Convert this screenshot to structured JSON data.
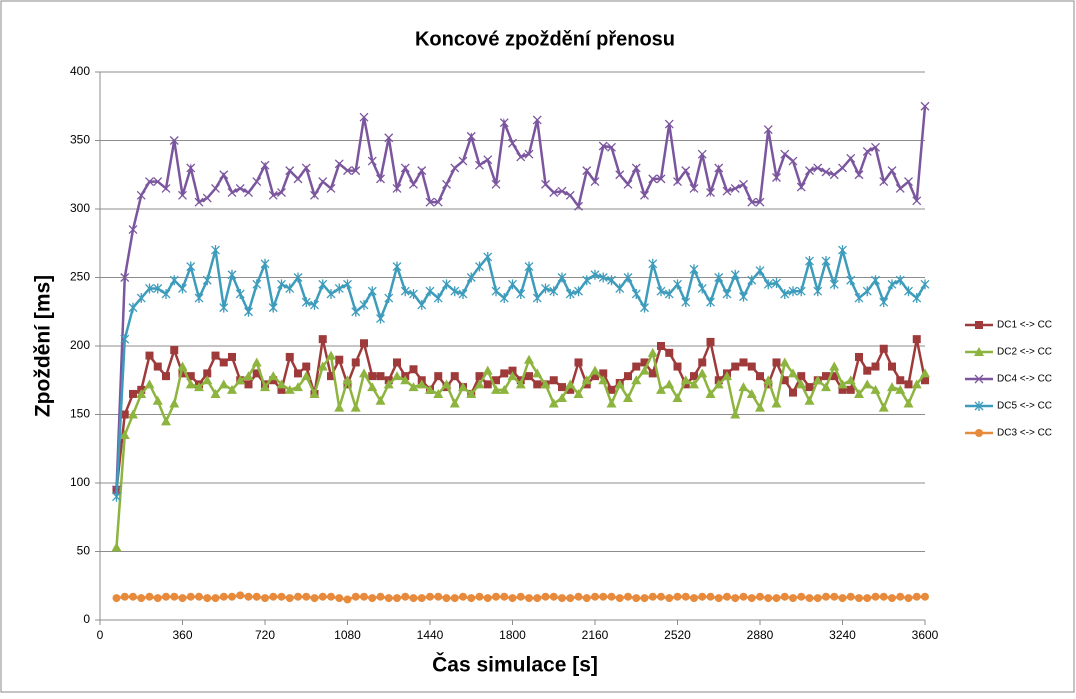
{
  "chart_data": {
    "type": "line",
    "title": "Koncové zpoždění přenosu",
    "x_label": "Čas simulace [s]",
    "y_label": "Zpoždění [ms]",
    "x": [
      72,
      108,
      144,
      180,
      216,
      252,
      288,
      324,
      360,
      396,
      432,
      468,
      504,
      540,
      576,
      612,
      648,
      684,
      720,
      756,
      792,
      828,
      864,
      900,
      936,
      972,
      1008,
      1044,
      1080,
      1116,
      1152,
      1188,
      1224,
      1260,
      1296,
      1332,
      1368,
      1404,
      1440,
      1476,
      1512,
      1548,
      1584,
      1620,
      1656,
      1692,
      1728,
      1764,
      1800,
      1836,
      1872,
      1908,
      1944,
      1980,
      2016,
      2052,
      2088,
      2124,
      2160,
      2196,
      2232,
      2268,
      2304,
      2340,
      2376,
      2412,
      2448,
      2484,
      2520,
      2556,
      2592,
      2628,
      2664,
      2700,
      2736,
      2772,
      2808,
      2844,
      2880,
      2916,
      2952,
      2988,
      3024,
      3060,
      3096,
      3132,
      3168,
      3204,
      3240,
      3276,
      3312,
      3348,
      3384,
      3420,
      3456,
      3492,
      3528,
      3564,
      3600
    ],
    "series": [
      {
        "name": "DC1 <-> CC",
        "color": "#9e3a3a",
        "marker": "square",
        "values": [
          95,
          150,
          165,
          168,
          193,
          185,
          178,
          197,
          180,
          178,
          172,
          180,
          193,
          188,
          192,
          175,
          172,
          180,
          172,
          175,
          168,
          192,
          180,
          185,
          165,
          205,
          178,
          190,
          172,
          188,
          202,
          178,
          178,
          175,
          188,
          178,
          183,
          175,
          168,
          178,
          170,
          178,
          170,
          165,
          178,
          172,
          175,
          180,
          182,
          175,
          178,
          172,
          172,
          175,
          170,
          168,
          188,
          172,
          178,
          180,
          168,
          173,
          178,
          185,
          188,
          180,
          200,
          195,
          185,
          172,
          178,
          188,
          203,
          175,
          180,
          185,
          188,
          185,
          178,
          172,
          188,
          175,
          166,
          178,
          170,
          175,
          178,
          178,
          168,
          168,
          192,
          182,
          185,
          198,
          185,
          175,
          172,
          205,
          175
        ]
      },
      {
        "name": "DC2 <-> CC",
        "color": "#8db43e",
        "marker": "triangle",
        "values": [
          53,
          135,
          150,
          165,
          172,
          160,
          145,
          158,
          185,
          172,
          170,
          175,
          165,
          172,
          168,
          175,
          178,
          188,
          170,
          178,
          172,
          168,
          170,
          178,
          165,
          185,
          193,
          155,
          175,
          155,
          180,
          170,
          160,
          172,
          178,
          175,
          170,
          172,
          168,
          165,
          172,
          158,
          170,
          165,
          172,
          182,
          168,
          168,
          178,
          172,
          190,
          180,
          172,
          158,
          162,
          172,
          165,
          175,
          182,
          175,
          158,
          172,
          162,
          175,
          182,
          195,
          168,
          172,
          162,
          175,
          172,
          180,
          165,
          172,
          178,
          150,
          170,
          165,
          155,
          175,
          158,
          188,
          180,
          172,
          160,
          175,
          170,
          185,
          172,
          175,
          165,
          172,
          168,
          155,
          170,
          168,
          158,
          172,
          180
        ]
      },
      {
        "name": "DC4 <-> CC",
        "color": "#7b569e",
        "marker": "x",
        "values": [
          95,
          250,
          285,
          310,
          320,
          320,
          315,
          350,
          310,
          330,
          305,
          308,
          315,
          325,
          312,
          315,
          312,
          320,
          332,
          310,
          312,
          328,
          322,
          330,
          310,
          320,
          315,
          333,
          328,
          328,
          367,
          335,
          322,
          352,
          315,
          330,
          318,
          328,
          305,
          305,
          318,
          330,
          335,
          353,
          332,
          336,
          318,
          363,
          348,
          338,
          340,
          365,
          318,
          312,
          313,
          310,
          302,
          328,
          320,
          346,
          345,
          325,
          318,
          330,
          310,
          322,
          322,
          362,
          320,
          328,
          315,
          340,
          312,
          330,
          313,
          315,
          318,
          305,
          305,
          358,
          323,
          340,
          335,
          316,
          328,
          330,
          327,
          325,
          330,
          337,
          325,
          342,
          345,
          320,
          328,
          315,
          320,
          306,
          375
        ]
      },
      {
        "name": "DC5 <-> CC",
        "color": "#3d9cbb",
        "marker": "asterisk",
        "values": [
          90,
          205,
          228,
          235,
          242,
          242,
          238,
          248,
          242,
          258,
          235,
          248,
          270,
          228,
          252,
          238,
          225,
          245,
          260,
          228,
          245,
          242,
          250,
          232,
          230,
          245,
          238,
          242,
          245,
          225,
          230,
          240,
          220,
          235,
          258,
          240,
          238,
          230,
          240,
          235,
          245,
          240,
          238,
          250,
          258,
          265,
          240,
          235,
          245,
          238,
          258,
          235,
          242,
          240,
          250,
          238,
          240,
          248,
          252,
          250,
          248,
          242,
          250,
          238,
          228,
          260,
          240,
          238,
          245,
          232,
          256,
          242,
          232,
          250,
          238,
          252,
          236,
          248,
          255,
          245,
          246,
          238,
          240,
          240,
          262,
          240,
          262,
          245,
          270,
          248,
          235,
          240,
          248,
          232,
          245,
          248,
          240,
          235,
          245
        ]
      },
      {
        "name": "DC3 <-> CC",
        "color": "#e88a3c",
        "marker": "circle",
        "values": [
          16,
          17,
          17,
          16,
          17,
          16,
          17,
          17,
          16,
          17,
          17,
          16,
          16,
          17,
          17,
          18,
          17,
          17,
          16,
          17,
          17,
          16,
          17,
          17,
          16,
          17,
          17,
          16,
          15,
          17,
          17,
          16,
          17,
          16,
          16,
          17,
          16,
          16,
          17,
          17,
          16,
          16,
          17,
          16,
          17,
          16,
          17,
          17,
          16,
          17,
          16,
          16,
          17,
          17,
          16,
          16,
          17,
          16,
          17,
          17,
          17,
          16,
          17,
          16,
          16,
          17,
          17,
          16,
          17,
          17,
          16,
          17,
          17,
          16,
          17,
          16,
          17,
          16,
          17,
          16,
          16,
          17,
          16,
          17,
          16,
          16,
          17,
          17,
          16,
          17,
          16,
          16,
          17,
          17,
          16,
          17,
          16,
          17,
          17
        ]
      }
    ],
    "xlim": [
      0,
      3600
    ],
    "xticks": [
      0,
      360,
      720,
      1080,
      1440,
      1800,
      2160,
      2520,
      2880,
      3240,
      3600
    ],
    "ylim": [
      0,
      400
    ],
    "yticks": [
      0,
      50,
      100,
      150,
      200,
      250,
      300,
      350,
      400
    ],
    "grid": true,
    "legend_position": "right"
  }
}
